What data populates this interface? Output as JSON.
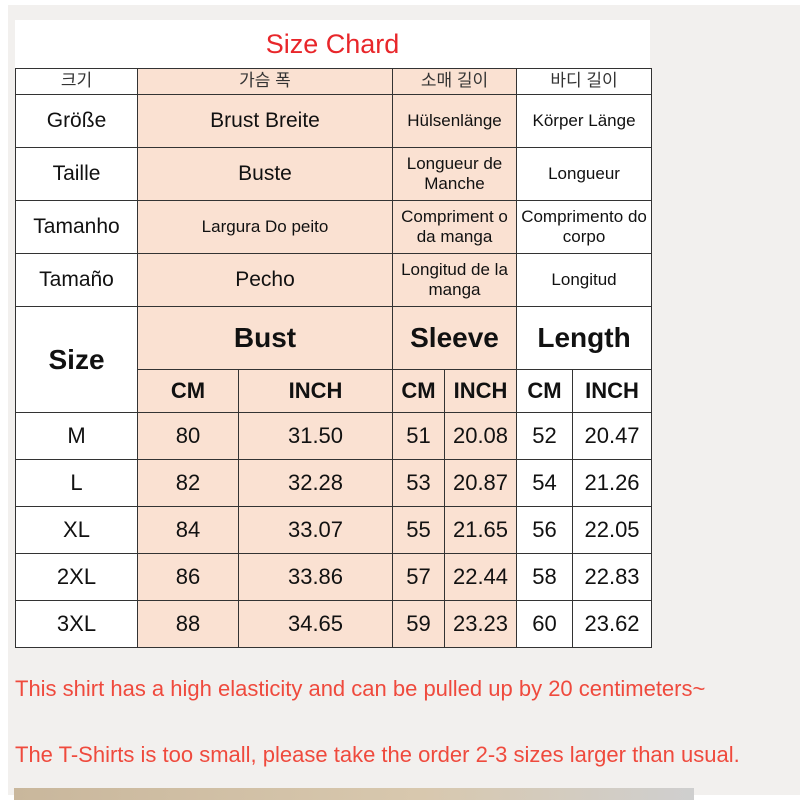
{
  "title": "Size Chard",
  "header_rows": [
    [
      "크기",
      "가슴 폭",
      "소매 길이",
      "바디 길이"
    ],
    [
      "Größe",
      "Brust Breite",
      "Hülsenlänge",
      "Körper Länge"
    ],
    [
      "Taille",
      "Buste",
      "Longueur de Manche",
      "Longueur"
    ],
    [
      "Tamanho",
      "Largura Do peito",
      "Compriment o da manga",
      "Comprimento do corpo"
    ],
    [
      "Tamaño",
      "Pecho",
      "Longitud de la manga",
      "Longitud"
    ]
  ],
  "main_header": {
    "size": "Size",
    "bust": "Bust",
    "sleeve": "Sleeve",
    "length": "Length"
  },
  "units": [
    "CM",
    "INCH",
    "CM",
    "INCH",
    "CM",
    "INCH"
  ],
  "rows": [
    [
      "M",
      "80",
      "31.50",
      "51",
      "20.08",
      "52",
      "20.47"
    ],
    [
      "L",
      "82",
      "32.28",
      "53",
      "20.87",
      "54",
      "21.26"
    ],
    [
      "XL",
      "84",
      "33.07",
      "55",
      "21.65",
      "56",
      "22.05"
    ],
    [
      "2XL",
      "86",
      "33.86",
      "57",
      "22.44",
      "58",
      "22.83"
    ],
    [
      "3XL",
      "88",
      "34.65",
      "59",
      "23.23",
      "60",
      "23.62"
    ]
  ],
  "notes": [
    "This shirt has a high elasticity and can be pulled up by 20 centimeters~",
    "The T-Shirts is too small, please take the order 2-3 sizes larger than usual."
  ],
  "colors": {
    "title": "#e8262a",
    "highlight": "#fae1d2",
    "note": "#ef4a3d"
  }
}
